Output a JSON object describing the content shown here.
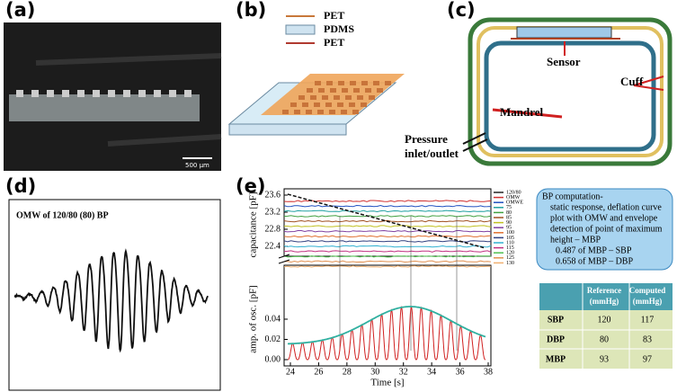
{
  "panels": {
    "a": {
      "label": "(a)",
      "scale": "500 µm"
    },
    "b": {
      "label": "(b)",
      "layers": [
        "PET",
        "PDMS",
        "PET"
      ]
    },
    "c": {
      "label": "(c)",
      "sensor": "Sensor",
      "cuff": "Cuff",
      "mandrel": "Mandrel",
      "pressure": [
        "Pressure",
        "inlet/outlet"
      ]
    },
    "d": {
      "label": "(d)",
      "title": "OMW of 120/80 (80) BP"
    },
    "e": {
      "label": "(e)",
      "y_upper_label": "capacitance [pF]",
      "y_lower_label": "amp. of osc. [pF]",
      "x_label": "Time [s]",
      "y_upper_ticks": [
        "23.6",
        "23.2",
        "22.8",
        "22.4"
      ],
      "y_lower_ticks": [
        "0.04",
        "0.02",
        "0.00"
      ],
      "x_ticks": [
        "24",
        "26",
        "28",
        "30",
        "32",
        "34",
        "36",
        "38"
      ],
      "legend": [
        "120/80",
        "OMW",
        "OMWE",
        "75",
        "80",
        "85",
        "90",
        "95",
        "100",
        "105",
        "110",
        "115",
        "120",
        "125",
        "130"
      ]
    }
  },
  "note": {
    "lines": [
      "BP computation-",
      "static response, deflation curve",
      "plot with OMW and envelope",
      "detection of point of maximum",
      "height – MBP",
      "0.487 of MBP – SBP",
      "0.658 of MBP – DBP"
    ]
  },
  "table": {
    "header": [
      [
        "Reference",
        "(mmHg)"
      ],
      [
        "Computed",
        "(mmHg)"
      ]
    ],
    "rows": [
      [
        "SBP",
        "120",
        "117"
      ],
      [
        "DBP",
        "80",
        "83"
      ],
      [
        "MBP",
        "93",
        "97"
      ]
    ]
  }
}
